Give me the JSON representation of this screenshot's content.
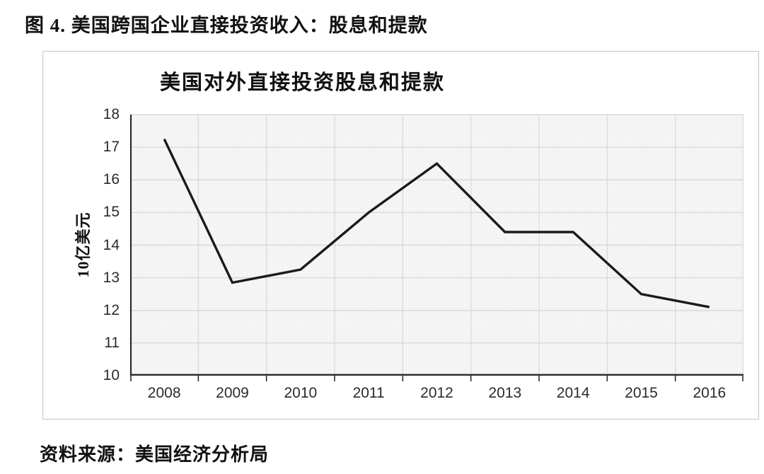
{
  "figure": {
    "caption": "图 4. 美国跨国企业直接投资收入：股息和提款"
  },
  "chart": {
    "title": "美国对外直接投资股息和提款",
    "y_axis_title": "10亿美元"
  },
  "source": {
    "text": "资料来源：美国经济分析局"
  },
  "colors": {
    "series_line": "#1a1a1a",
    "axis_line": "#2b2b2b",
    "gridline": "#dadada",
    "plot_fill": "#f5f5f5",
    "frame_border": "#c3c3c3",
    "text": "#111111"
  },
  "chart_data": {
    "type": "line",
    "title": "美国对外直接投资股息和提款",
    "categories": [
      "2008",
      "2009",
      "2010",
      "2011",
      "2012",
      "2013",
      "2014",
      "2015",
      "2016"
    ],
    "values": [
      17.25,
      12.85,
      13.25,
      15.0,
      16.5,
      14.4,
      14.4,
      12.5,
      12.1
    ],
    "xlabel": "",
    "ylabel": "10亿美元",
    "ylim": [
      10,
      18
    ],
    "y_tick_step": 1,
    "grid": true,
    "legend": false,
    "series_color": "#1a1a1a"
  }
}
